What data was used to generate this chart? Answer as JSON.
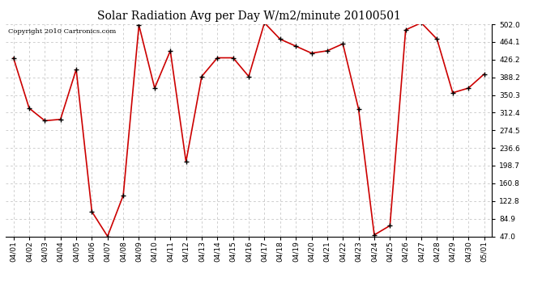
{
  "title": "Solar Radiation Avg per Day W/m2/minute 20100501",
  "copyright": "Copyright 2010 Cartronics.com",
  "labels": [
    "04/01",
    "04/02",
    "04/03",
    "04/04",
    "04/05",
    "04/06",
    "04/07",
    "04/08",
    "04/09",
    "04/10",
    "04/11",
    "04/12",
    "04/13",
    "04/14",
    "04/15",
    "04/16",
    "04/17",
    "04/18",
    "04/19",
    "04/20",
    "04/21",
    "04/22",
    "04/23",
    "04/24",
    "04/25",
    "04/26",
    "04/27",
    "04/28",
    "04/29",
    "04/30",
    "05/01"
  ],
  "values": [
    430,
    322,
    295,
    298,
    405,
    100,
    47,
    135,
    500,
    365,
    445,
    207,
    390,
    430,
    430,
    390,
    505,
    470,
    455,
    440,
    445,
    460,
    320,
    50,
    70,
    490,
    505,
    470,
    355,
    365,
    395
  ],
  "line_color": "#cc0000",
  "marker": "+",
  "marker_size": 5,
  "marker_color": "#000000",
  "bg_color": "#ffffff",
  "grid_color": "#bbbbbb",
  "yticks": [
    47.0,
    84.9,
    122.8,
    160.8,
    198.7,
    236.6,
    274.5,
    312.4,
    350.3,
    388.2,
    426.2,
    464.1,
    502.0
  ],
  "ylim": [
    47.0,
    502.0
  ],
  "title_fontsize": 10,
  "copyright_fontsize": 6,
  "tick_fontsize": 6.5
}
